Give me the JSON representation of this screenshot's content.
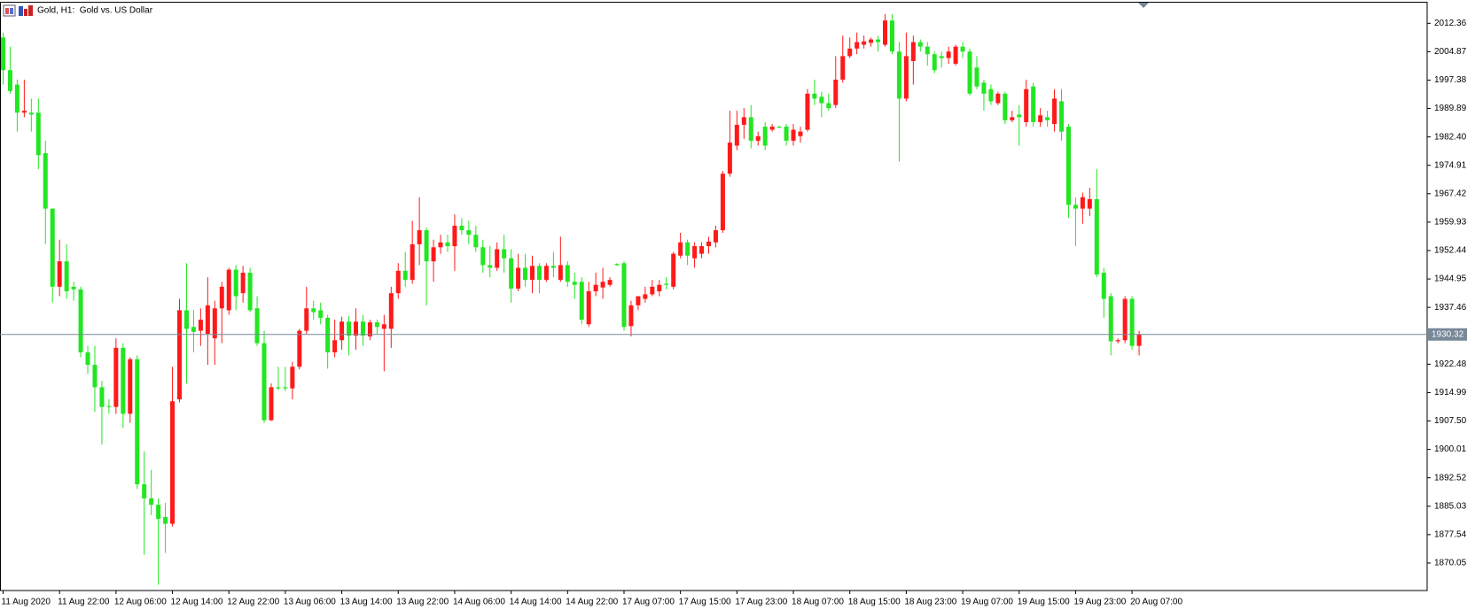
{
  "chart_data": {
    "type": "candlestick",
    "title": "Gold, H1:  Gold vs. US Dollar",
    "up_color": "#ff1a1a",
    "down_color": "#22e622",
    "categories": [
      "11 Aug 2020",
      null,
      null,
      null,
      null,
      null,
      null,
      null,
      "11 Aug 22:00",
      null,
      null,
      null,
      null,
      null,
      null,
      null,
      "12 Aug 06:00",
      null,
      null,
      null,
      null,
      null,
      null,
      null,
      "12 Aug 14:00",
      null,
      null,
      null,
      null,
      null,
      null,
      null,
      "12 Aug 22:00",
      null,
      null,
      null,
      null,
      null,
      null,
      null,
      "13 Aug 06:00",
      null,
      null,
      null,
      null,
      null,
      null,
      null,
      "13 Aug 14:00",
      null,
      null,
      null,
      null,
      null,
      null,
      null,
      "13 Aug 22:00",
      null,
      null,
      null,
      null,
      null,
      null,
      null,
      "14 Aug 06:00",
      null,
      null,
      null,
      null,
      null,
      null,
      null,
      "14 Aug 14:00",
      null,
      null,
      null,
      null,
      null,
      null,
      null,
      "14 Aug 22:00",
      null,
      null,
      null,
      null,
      null,
      null,
      null,
      "17 Aug 07:00",
      null,
      null,
      null,
      null,
      null,
      null,
      null,
      "17 Aug 15:00",
      null,
      null,
      null,
      null,
      null,
      null,
      null,
      "17 Aug 23:00",
      null,
      null,
      null,
      null,
      null,
      null,
      null,
      "18 Aug 07:00",
      null,
      null,
      null,
      null,
      null,
      null,
      null,
      "18 Aug 15:00",
      null,
      null,
      null,
      null,
      null,
      null,
      null,
      "18 Aug 23:00",
      null,
      null,
      null,
      null,
      null,
      null,
      null,
      "19 Aug 07:00",
      null,
      null,
      null,
      null,
      null,
      null,
      null,
      "19 Aug 15:00",
      null,
      null,
      null,
      null,
      null,
      null,
      null,
      "19 Aug 23:00",
      null,
      null,
      null,
      null,
      null,
      null,
      null,
      "20 Aug 07:00",
      null
    ],
    "open": [
      2008.6,
      2000.0,
      1996.2,
      1988.8,
      1988.8,
      1988.8,
      1978.1,
      1963.5,
      1942.9,
      1949.6,
      1942.9,
      1942.2,
      1925.6,
      1922.3,
      1916.4,
      1911.4,
      1911.2,
      1926.8,
      1909.4,
      1923.8,
      1890.8,
      1887.1,
      1885.4,
      1882.2,
      1880.4,
      1913.2,
      1936.7,
      1932.3,
      1931.3,
      1930.5,
      1929.3,
      1937.2,
      1936.7,
      1947.4,
      1941.2,
      1946.6,
      1937.2,
      1928.0,
      1907.7,
      1916.4,
      1916.4,
      1916.1,
      1921.8,
      1931.3,
      1937.2,
      1936.7,
      1934.7,
      1925.6,
      1928.8,
      1933.7,
      1930.0,
      1933.7,
      1929.8,
      1933.5,
      1931.8,
      1931.8,
      1941.2,
      1947.1,
      1944.7,
      1954.1,
      1957.8,
      1949.6,
      1953.3,
      1954.6,
      1953.6,
      1959.0,
      1957.8,
      1956.6,
      1953.3,
      1948.6,
      1947.9,
      1952.8,
      1950.4,
      1942.4,
      1947.9,
      1944.7,
      1948.4,
      1944.7,
      1948.4,
      1944.7,
      1948.6,
      1944.2,
      1944.2,
      1933.0,
      1941.7,
      1942.7,
      1943.4,
      1948.9,
      1949.1,
      1932.5,
      1938.0,
      1939.7,
      1940.9,
      1941.7,
      1943.7,
      1942.9,
      1951.1,
      1954.6,
      1950.4,
      1951.6,
      1953.6,
      1954.6,
      1957.8,
      1972.7,
      1980.1,
      1985.6,
      1987.6,
      1981.4,
      1985.1,
      1984.3,
      1985.1,
      1985.1,
      1981.4,
      1982.6,
      1984.3,
      1993.8,
      1993.0,
      1991.3,
      1990.8,
      1997.5,
      2003.7,
      2005.7,
      2006.7,
      2007.2,
      2008.1,
      2006.7,
      2013.1,
      2004.9,
      1992.5,
      2002.4,
      2007.4,
      2006.2,
      2004.2,
      2003.7,
      2003.2,
      2001.7,
      2006.2,
      2004.9,
      2000.7,
      1996.7,
      1995.0,
      1991.3,
      1993.8,
      1986.8,
      1988.3,
      1986.3,
      1995.7,
      1986.3,
      1987.6,
      1985.8,
      1991.8,
      1985.1,
      1964.5,
      1963.5,
      1963.5,
      1966.0,
      1946.6,
      1940.4,
      1928.5,
      1928.8,
      1939.7,
      1927.3
    ],
    "high": [
      2009.9,
      2006.2,
      1997.5,
      1997.5,
      1992.5,
      1992.5,
      1981.4,
      1963.5,
      1955.3,
      1954.1,
      1944.2,
      1942.9,
      1927.3,
      1927.3,
      1918.1,
      1913.2,
      1929.3,
      1928.0,
      1924.3,
      1924.8,
      1899.5,
      1894.6,
      1887.1,
      1885.9,
      1921.8,
      1939.7,
      1949.1,
      1936.7,
      1937.2,
      1945.4,
      1939.2,
      1944.2,
      1947.9,
      1948.6,
      1948.4,
      1947.9,
      1940.4,
      1931.3,
      1917.4,
      1921.8,
      1921.8,
      1923.1,
      1931.8,
      1942.9,
      1939.2,
      1938.7,
      1935.5,
      1934.2,
      1935.0,
      1935.2,
      1937.2,
      1935.5,
      1934.2,
      1934.2,
      1935.5,
      1942.9,
      1949.1,
      1952.1,
      1960.3,
      1966.5,
      1958.5,
      1955.3,
      1956.6,
      1956.6,
      1962.0,
      1961.0,
      1960.3,
      1959.0,
      1955.3,
      1953.6,
      1954.6,
      1956.6,
      1952.8,
      1951.6,
      1951.6,
      1951.1,
      1949.1,
      1949.1,
      1952.1,
      1956.1,
      1949.6,
      1946.6,
      1945.4,
      1944.2,
      1946.6,
      1947.9,
      1945.4,
      1949.1,
      1949.6,
      1939.2,
      1940.4,
      1942.9,
      1944.7,
      1944.7,
      1945.4,
      1952.1,
      1957.1,
      1955.3,
      1954.6,
      1954.6,
      1956.1,
      1959.0,
      1973.4,
      1989.3,
      1989.3,
      1990.0,
      1990.8,
      1983.8,
      1986.3,
      1985.8,
      1985.3,
      1985.8,
      1985.8,
      1985.1,
      1995.0,
      1997.5,
      1994.3,
      1993.8,
      2003.7,
      2009.1,
      2008.6,
      2009.9,
      2009.1,
      2008.6,
      2009.1,
      2014.8,
      2014.8,
      2007.4,
      2009.9,
      2009.1,
      2008.1,
      2007.4,
      2004.9,
      2004.9,
      2006.2,
      2006.7,
      2007.4,
      2005.7,
      2003.7,
      1997.5,
      1996.2,
      1994.3,
      1994.3,
      1989.3,
      1990.8,
      1997.5,
      1996.7,
      1990.0,
      1989.3,
      1995.0,
      1995.0,
      1985.8,
      1966.5,
      1967.7,
      1969.0,
      1973.9,
      1947.9,
      1941.2,
      1929.3,
      1940.4,
      1940.4,
      1931.3
    ],
    "low": [
      1996.2,
      1993.8,
      1983.8,
      1987.6,
      1983.8,
      1973.9,
      1954.1,
      1938.7,
      1940.4,
      1939.7,
      1939.2,
      1924.3,
      1919.9,
      1909.9,
      1901.3,
      1909.4,
      1909.4,
      1905.7,
      1907.0,
      1889.6,
      1872.2,
      1882.7,
      1864.3,
      1872.7,
      1879.7,
      1912.4,
      1917.4,
      1925.6,
      1927.3,
      1922.3,
      1922.3,
      1928.0,
      1935.5,
      1936.7,
      1938.7,
      1936.2,
      1927.3,
      1907.0,
      1907.5,
      1915.6,
      1915.4,
      1913.2,
      1921.1,
      1930.5,
      1934.2,
      1933.0,
      1921.3,
      1924.3,
      1926.3,
      1924.8,
      1926.3,
      1927.3,
      1928.8,
      1930.5,
      1920.6,
      1926.8,
      1939.7,
      1942.9,
      1943.7,
      1948.6,
      1938.0,
      1944.2,
      1951.6,
      1952.1,
      1947.1,
      1956.6,
      1954.1,
      1952.1,
      1946.6,
      1945.4,
      1947.1,
      1946.6,
      1938.7,
      1941.7,
      1942.9,
      1941.2,
      1941.2,
      1944.2,
      1945.4,
      1944.2,
      1942.9,
      1939.7,
      1933.0,
      1932.3,
      1940.4,
      1939.7,
      1942.9,
      1948.4,
      1931.3,
      1929.8,
      1936.7,
      1938.7,
      1940.4,
      1940.4,
      1942.2,
      1942.2,
      1950.4,
      1948.6,
      1947.9,
      1950.4,
      1951.6,
      1953.3,
      1957.1,
      1971.9,
      1978.9,
      1981.9,
      1979.4,
      1980.1,
      1978.9,
      1983.8,
      1984.8,
      1980.1,
      1980.1,
      1980.9,
      1983.8,
      1990.8,
      1987.6,
      1989.3,
      1990.0,
      1996.7,
      2003.2,
      2004.2,
      2005.7,
      2006.2,
      2004.9,
      2006.2,
      2004.2,
      1975.9,
      1991.8,
      1996.2,
      2004.9,
      2001.2,
      1999.2,
      2000.7,
      2001.7,
      2001.2,
      2003.2,
      1993.3,
      1995.0,
      1989.3,
      1990.8,
      1990.8,
      1985.8,
      1986.3,
      1980.1,
      1985.1,
      1985.1,
      1985.1,
      1985.1,
      1983.8,
      1981.4,
      1961.0,
      1953.6,
      1959.5,
      1961.5,
      1945.4,
      1934.7,
      1924.8,
      1928.0,
      1928.0,
      1926.3,
      1924.8
    ],
    "close": [
      2000.0,
      1994.5,
      1988.8,
      1989.3,
      1988.3,
      1977.6,
      1963.5,
      1942.9,
      1949.6,
      1941.7,
      1942.2,
      1925.6,
      1922.3,
      1916.4,
      1911.2,
      1911.2,
      1926.8,
      1909.4,
      1923.8,
      1890.8,
      1887.1,
      1885.4,
      1881.7,
      1880.4,
      1912.7,
      1936.7,
      1931.8,
      1931.0,
      1934.2,
      1938.0,
      1937.2,
      1942.9,
      1947.4,
      1940.4,
      1946.6,
      1936.7,
      1928.0,
      1907.7,
      1916.4,
      1916.1,
      1916.1,
      1921.8,
      1931.3,
      1937.2,
      1936.2,
      1934.7,
      1925.6,
      1928.8,
      1933.7,
      1930.0,
      1933.7,
      1930.0,
      1933.5,
      1932.3,
      1933.0,
      1941.2,
      1947.1,
      1944.7,
      1954.1,
      1957.8,
      1949.6,
      1953.3,
      1954.6,
      1953.6,
      1959.0,
      1957.8,
      1956.6,
      1953.3,
      1948.6,
      1947.9,
      1952.8,
      1950.4,
      1942.4,
      1947.9,
      1944.7,
      1948.4,
      1944.7,
      1948.4,
      1947.9,
      1948.6,
      1944.2,
      1943.4,
      1934.2,
      1941.7,
      1943.4,
      1944.2,
      1944.7,
      1948.6,
      1932.3,
      1938.0,
      1940.4,
      1940.9,
      1942.9,
      1943.4,
      1943.4,
      1951.6,
      1954.6,
      1951.1,
      1953.6,
      1953.6,
      1954.8,
      1957.8,
      1972.7,
      1980.9,
      1985.6,
      1987.6,
      1981.4,
      1982.6,
      1980.1,
      1985.1,
      1984.8,
      1981.4,
      1984.3,
      1983.8,
      1993.8,
      1992.5,
      1991.3,
      1990.0,
      1997.5,
      2003.7,
      2005.7,
      2007.4,
      2007.6,
      2008.1,
      2007.4,
      2013.1,
      2004.9,
      1992.5,
      2003.7,
      2007.4,
      2006.2,
      2004.2,
      2000.0,
      2003.2,
      2004.9,
      2006.2,
      2004.9,
      1993.8,
      1995.7,
      1993.8,
      1991.8,
      1993.8,
      1986.8,
      1987.6,
      1987.6,
      1995.0,
      1986.3,
      1988.1,
      1986.8,
      1992.5,
      1983.8,
      1964.5,
      1963.5,
      1966.5,
      1966.0,
      1946.1,
      1939.7,
      1928.5,
      1928.8,
      1939.7,
      1927.3,
      1930.3
    ],
    "ylim": [
      1862.8,
      2017.8
    ],
    "yticks": [
      2012.36,
      2004.87,
      1997.38,
      1989.89,
      {
        "value": 1982.4,
        "label": "1982.40"
      },
      1974.91,
      1967.42,
      1959.93,
      1952.44,
      1944.95,
      1937.46,
      1922.48,
      1914.99,
      {
        "value": 1907.5,
        "label": "1907.50"
      },
      1900.01,
      1892.52,
      1885.03,
      1877.54,
      1870.05
    ],
    "current_price": 1930.32,
    "current_price_color": "#778899",
    "grid": false
  }
}
